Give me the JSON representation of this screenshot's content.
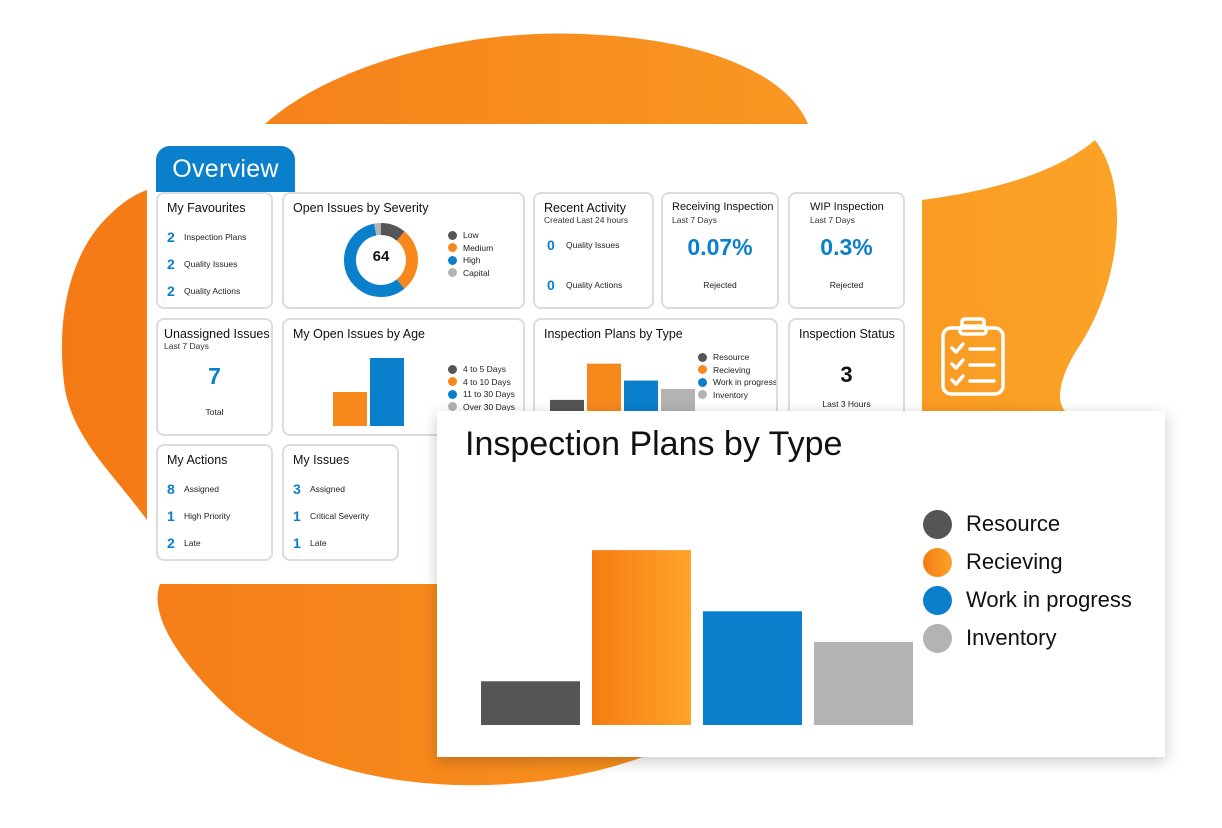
{
  "overview_tab": "Overview",
  "colors": {
    "blue": "#0a7fcb",
    "orange": "#f7891c",
    "dark_gray": "#555555",
    "light_gray": "#b3b3b3",
    "blob_orange": "#f7891c"
  },
  "favourites": {
    "title": "My Favourites",
    "items": [
      {
        "count": "2",
        "label": "Inspection Plans"
      },
      {
        "count": "2",
        "label": "Quality Issues"
      },
      {
        "count": "2",
        "label": "Quality Actions"
      }
    ]
  },
  "severity": {
    "title": "Open Issues by Severity",
    "total": "64",
    "legend": [
      "Low",
      "Medium",
      "High",
      "Capital"
    ]
  },
  "recent": {
    "title": "Recent Activity",
    "subtitle": "Created Last 24 hours",
    "items": [
      {
        "count": "0",
        "label": "Quality Issues"
      },
      {
        "count": "0",
        "label": "Quality Actions"
      }
    ]
  },
  "receiving": {
    "title": "Receiving Inspection",
    "subtitle": "Last 7 Days",
    "value": "0.07%",
    "caption": "Rejected"
  },
  "wip": {
    "title": "WIP Inspection",
    "subtitle": "Last 7 Days",
    "value": "0.3%",
    "caption": "Rejected"
  },
  "unassigned": {
    "title": "Unassigned Issues",
    "subtitle": "Last 7 Days",
    "value": "7",
    "caption": "Total"
  },
  "age": {
    "title": "My Open Issues by Age",
    "legend": [
      "4 to 5 Days",
      "4 to 10 Days",
      "11 to 30 Days",
      "Over 30 Days"
    ]
  },
  "plans_small": {
    "title": "Inspection Plans by Type",
    "legend": [
      "Resource",
      "Recieving",
      "Work in progress",
      "Inventory"
    ]
  },
  "status": {
    "title": "Inspection Status",
    "value": "3",
    "caption": "Last 3 Hours"
  },
  "actions": {
    "title": "My Actions",
    "items": [
      {
        "count": "8",
        "label": "Assigned"
      },
      {
        "count": "1",
        "label": "High Priority"
      },
      {
        "count": "2",
        "label": "Late"
      }
    ]
  },
  "issues": {
    "title": "My Issues",
    "items": [
      {
        "count": "3",
        "label": "Assigned"
      },
      {
        "count": "1",
        "label": "Critical Severity"
      },
      {
        "count": "1",
        "label": "Late"
      }
    ]
  },
  "chart_data": [
    {
      "type": "pie",
      "title": "Open Issues by Severity",
      "center_label": "64",
      "categories": [
        "Low",
        "Medium",
        "High",
        "Capital"
      ],
      "values": [
        7,
        18,
        37,
        2
      ],
      "colors": [
        "#555555",
        "#f7891c",
        "#0a7fcb",
        "#b3b3b3"
      ]
    },
    {
      "type": "bar",
      "title": "My Open Issues by Age",
      "categories": [
        "4 to 5 Days",
        "4 to 10 Days",
        "11 to 30 Days",
        "Over 30 Days"
      ],
      "values": [
        0,
        5,
        10,
        0
      ],
      "colors": [
        "#555555",
        "#f7891c",
        "#0a7fcb",
        "#b3b3b3"
      ],
      "ylim": [
        0,
        10
      ]
    },
    {
      "type": "bar",
      "title": "Inspection Plans by Type",
      "categories": [
        "Resource",
        "Recieving",
        "Work in progress",
        "Inventory"
      ],
      "values": [
        1,
        4,
        2.6,
        1.9
      ],
      "colors": [
        "#555555",
        "#f7891c",
        "#0a7fcb",
        "#b3b3b3"
      ],
      "ylim": [
        0,
        4.3
      ]
    }
  ]
}
